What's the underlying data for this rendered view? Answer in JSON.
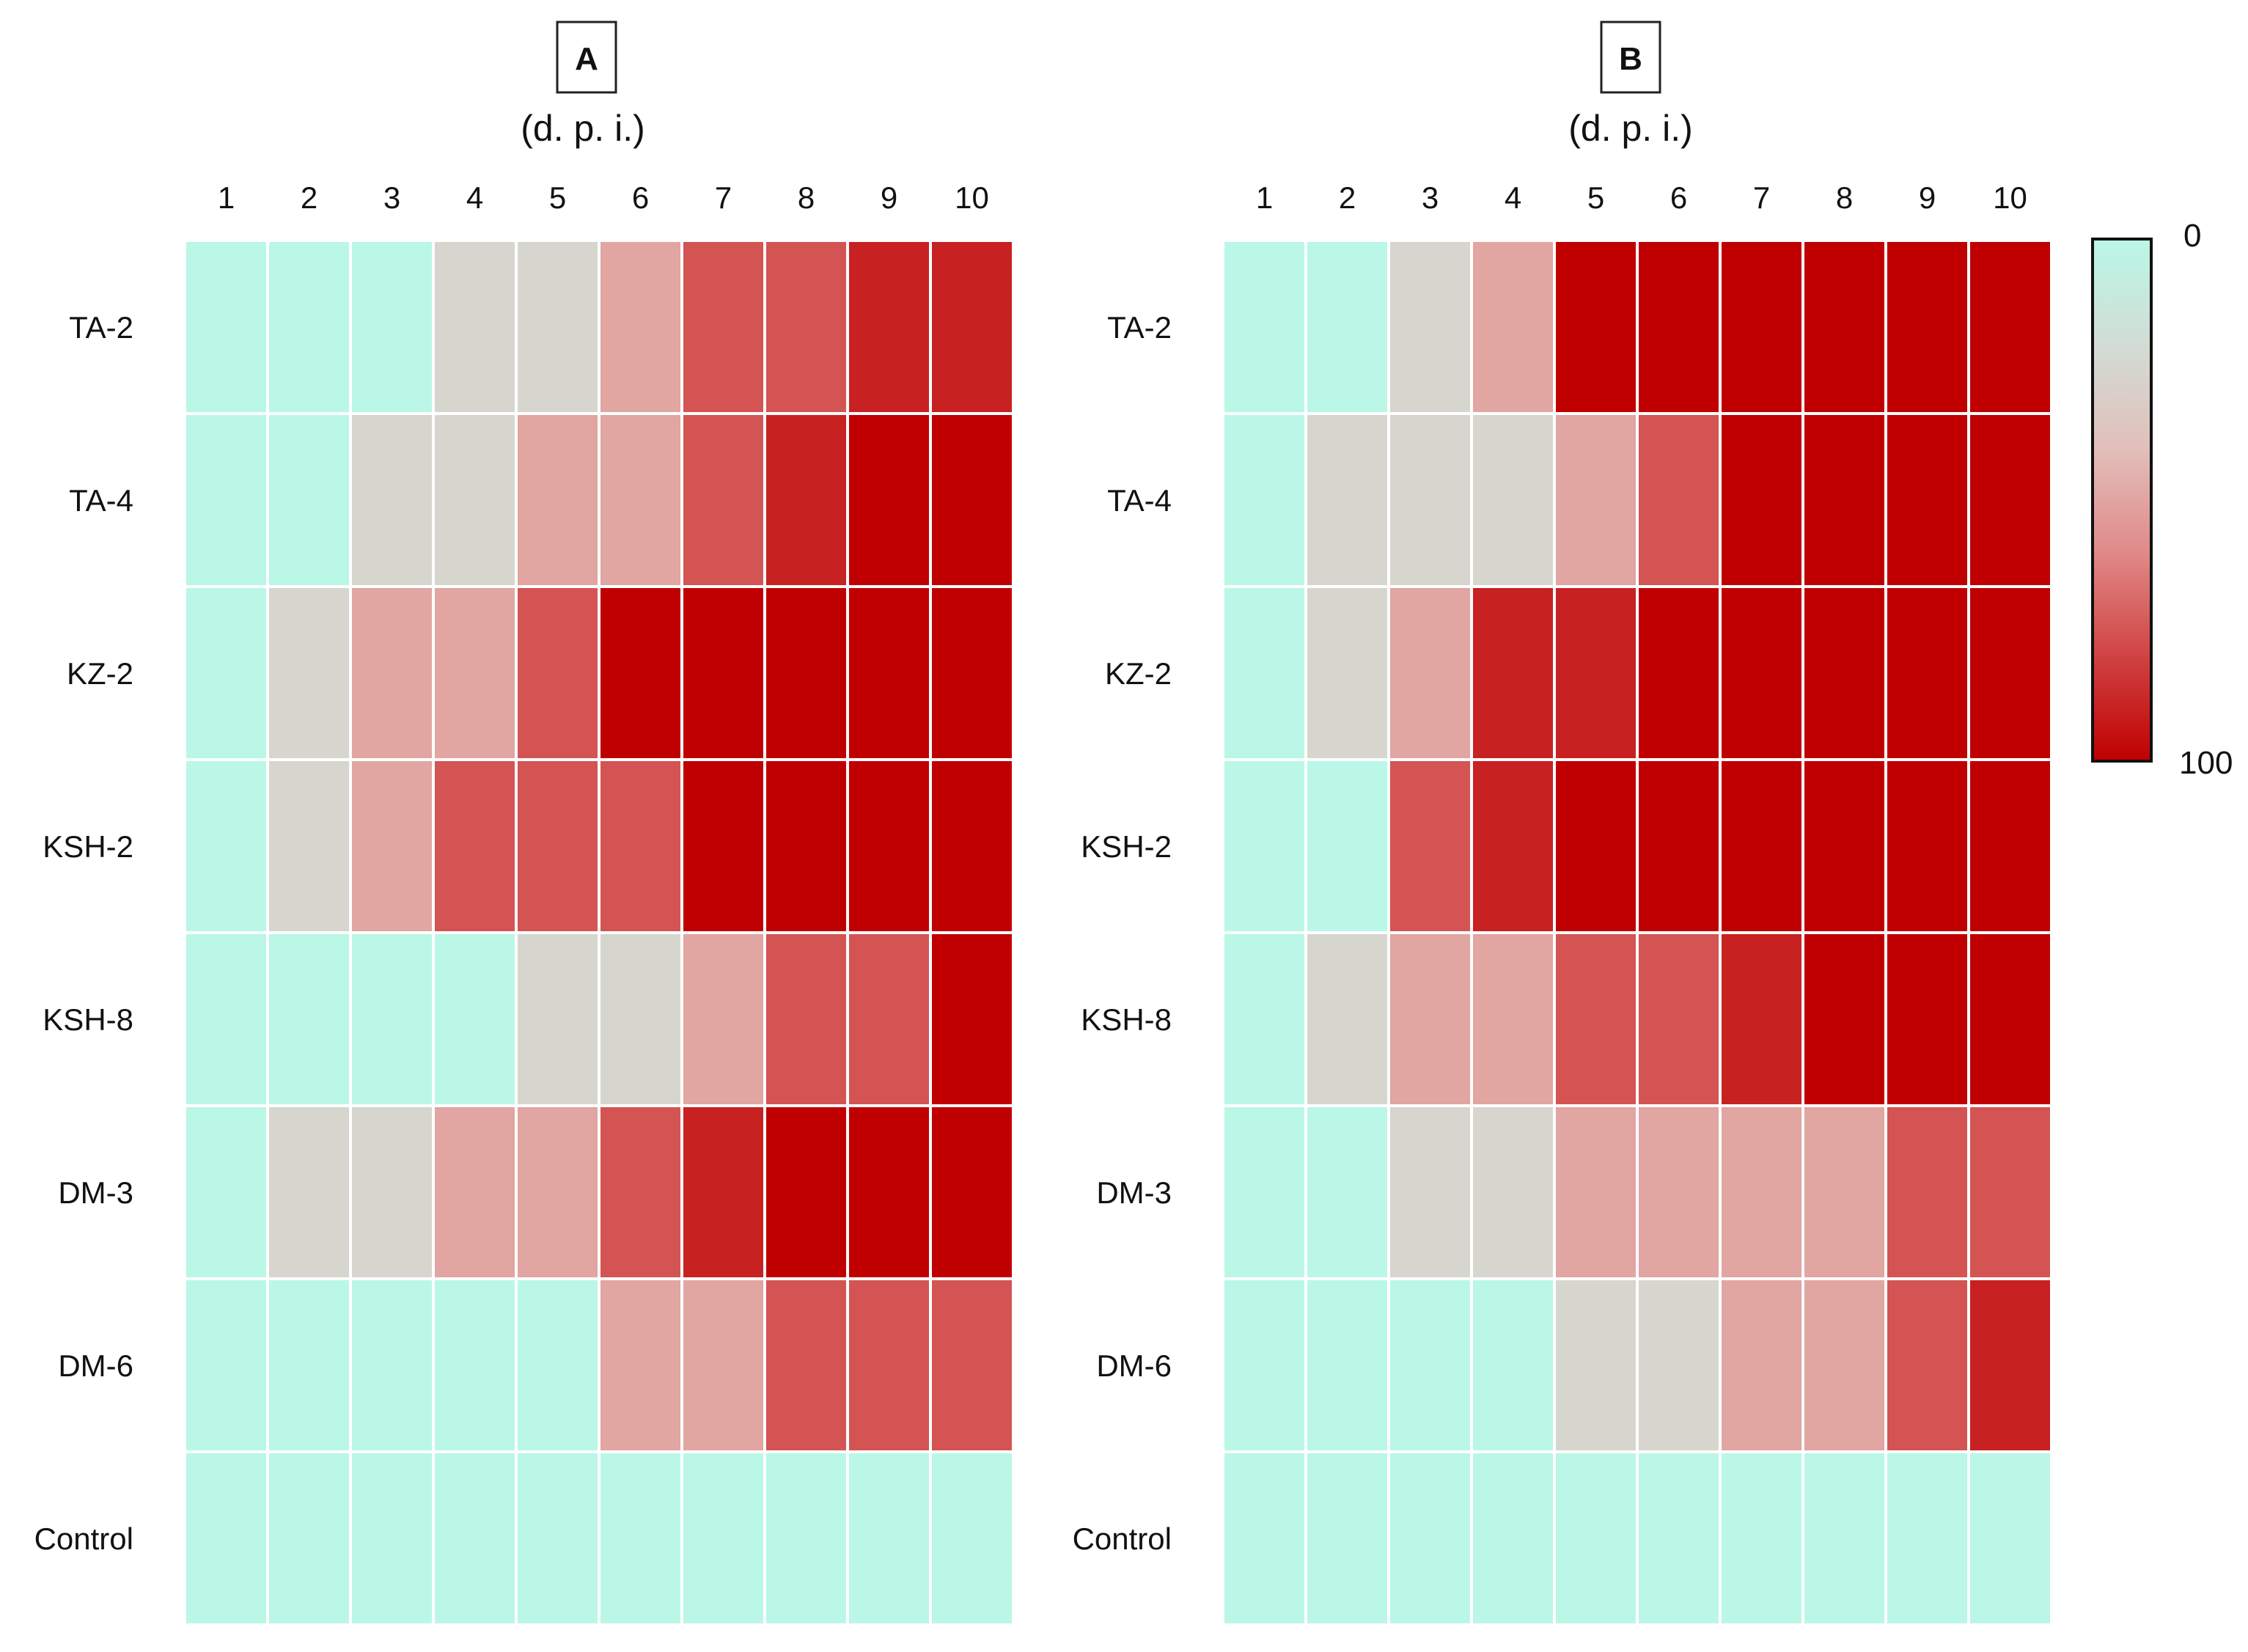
{
  "chart_data": {
    "type": "heatmap",
    "panels": [
      {
        "panel_label": "A",
        "xlabel": "(d. p. i.)",
        "columns": [
          "1",
          "2",
          "3",
          "4",
          "5",
          "6",
          "7",
          "8",
          "9",
          "10"
        ],
        "rows": [
          "TA-2",
          "TA-4",
          "KZ-2",
          "KSH-2",
          "KSH-8",
          "DM-3",
          "DM-6",
          "Control"
        ],
        "values": [
          [
            0,
            0,
            0,
            25,
            25,
            50,
            75,
            75,
            90,
            90
          ],
          [
            0,
            0,
            25,
            25,
            50,
            50,
            75,
            90,
            100,
            100
          ],
          [
            0,
            25,
            50,
            50,
            75,
            100,
            100,
            100,
            100,
            100
          ],
          [
            0,
            25,
            50,
            75,
            75,
            75,
            100,
            100,
            100,
            100
          ],
          [
            0,
            0,
            0,
            0,
            25,
            25,
            50,
            75,
            75,
            100
          ],
          [
            0,
            25,
            25,
            50,
            50,
            75,
            90,
            100,
            100,
            100
          ],
          [
            0,
            0,
            0,
            0,
            0,
            50,
            50,
            75,
            75,
            75
          ],
          [
            0,
            0,
            0,
            0,
            0,
            0,
            0,
            0,
            0,
            0
          ]
        ]
      },
      {
        "panel_label": "B",
        "xlabel": "(d. p. i.)",
        "columns": [
          "1",
          "2",
          "3",
          "4",
          "5",
          "6",
          "7",
          "8",
          "9",
          "10"
        ],
        "rows": [
          "TA-2",
          "TA-4",
          "KZ-2",
          "KSH-2",
          "KSH-8",
          "DM-3",
          "DM-6",
          "Control"
        ],
        "values": [
          [
            0,
            0,
            25,
            50,
            100,
            100,
            100,
            100,
            100,
            100
          ],
          [
            0,
            25,
            25,
            25,
            50,
            75,
            100,
            100,
            100,
            100
          ],
          [
            0,
            25,
            50,
            90,
            90,
            100,
            100,
            100,
            100,
            100
          ],
          [
            0,
            0,
            75,
            90,
            100,
            100,
            100,
            100,
            100,
            100
          ],
          [
            0,
            25,
            50,
            50,
            75,
            75,
            90,
            100,
            100,
            100
          ],
          [
            0,
            0,
            25,
            25,
            50,
            50,
            50,
            50,
            75,
            75
          ],
          [
            0,
            0,
            0,
            0,
            25,
            25,
            50,
            50,
            75,
            90
          ],
          [
            0,
            0,
            0,
            0,
            0,
            0,
            0,
            0,
            0,
            0
          ]
        ]
      }
    ],
    "colorbar": {
      "min_label": "0",
      "max_label": "100",
      "range": [
        0,
        100
      ],
      "colors": [
        "#baf7e6",
        "#d2ddd5",
        "#e2bfbb",
        "#e08a88",
        "#d04242",
        "#c00000"
      ]
    }
  }
}
